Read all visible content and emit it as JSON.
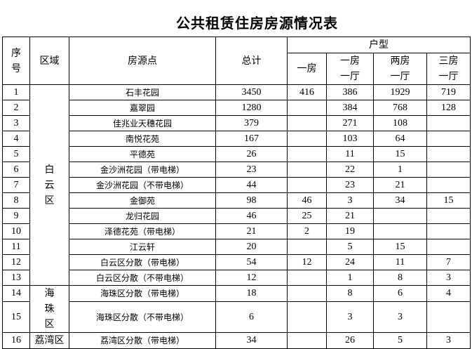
{
  "title": "公共租赁住房房源情况表",
  "headers": {
    "seq": "序号",
    "region": "区域",
    "site": "房源点",
    "total": "总计",
    "type_group": "户型",
    "types": [
      "一房",
      "一房一厅",
      "两房一厅",
      "三房一厅"
    ]
  },
  "regions": [
    {
      "name": "白云区",
      "rows": 13
    },
    {
      "name": "海珠区",
      "rows": 2
    },
    {
      "name": "荔湾区",
      "rows": 1
    }
  ],
  "rows": [
    {
      "seq": "1",
      "site": "石丰花园",
      "total": "3450",
      "t1": "416",
      "t2": "386",
      "t3": "1929",
      "t4": "719"
    },
    {
      "seq": "2",
      "site": "嘉翠园",
      "total": "1280",
      "t1": "",
      "t2": "384",
      "t3": "768",
      "t4": "128"
    },
    {
      "seq": "3",
      "site": "佳兆业天穗花园",
      "total": "379",
      "t1": "",
      "t2": "271",
      "t3": "108",
      "t4": ""
    },
    {
      "seq": "4",
      "site": "南悦花苑",
      "total": "167",
      "t1": "",
      "t2": "103",
      "t3": "64",
      "t4": ""
    },
    {
      "seq": "5",
      "site": "平德苑",
      "total": "26",
      "t1": "",
      "t2": "11",
      "t3": "15",
      "t4": ""
    },
    {
      "seq": "6",
      "site": "金沙洲花园（带电梯）",
      "total": "23",
      "t1": "",
      "t2": "22",
      "t3": "1",
      "t4": ""
    },
    {
      "seq": "7",
      "site": "金沙洲花园（不带电梯）",
      "total": "44",
      "t1": "",
      "t2": "23",
      "t3": "21",
      "t4": ""
    },
    {
      "seq": "8",
      "site": "金御苑",
      "total": "98",
      "t1": "46",
      "t2": "3",
      "t3": "34",
      "t4": "15"
    },
    {
      "seq": "9",
      "site": "龙归花园",
      "total": "46",
      "t1": "25",
      "t2": "21",
      "t3": "",
      "t4": ""
    },
    {
      "seq": "10",
      "site": "泽德花苑（带电梯）",
      "total": "21",
      "t1": "2",
      "t2": "19",
      "t3": "",
      "t4": ""
    },
    {
      "seq": "11",
      "site": "江云轩",
      "total": "20",
      "t1": "",
      "t2": "5",
      "t3": "15",
      "t4": ""
    },
    {
      "seq": "12",
      "site": "白云区分散（带电梯）",
      "total": "54",
      "t1": "12",
      "t2": "24",
      "t3": "11",
      "t4": "7"
    },
    {
      "seq": "13",
      "site": "白云区分散（不带电梯）",
      "total": "12",
      "t1": "",
      "t2": "1",
      "t3": "8",
      "t4": "3"
    },
    {
      "seq": "14",
      "site": "海珠区分散（带电梯）",
      "total": "18",
      "t1": "",
      "t2": "8",
      "t3": "6",
      "t4": "4"
    },
    {
      "seq": "15",
      "site": "海珠区分散（不带电梯）",
      "total": "6",
      "t1": "",
      "t2": "3",
      "t3": "3",
      "t4": ""
    },
    {
      "seq": "16",
      "site": "荔湾区分散（带电梯）",
      "total": "34",
      "t1": "",
      "t2": "26",
      "t3": "5",
      "t4": "3"
    }
  ]
}
